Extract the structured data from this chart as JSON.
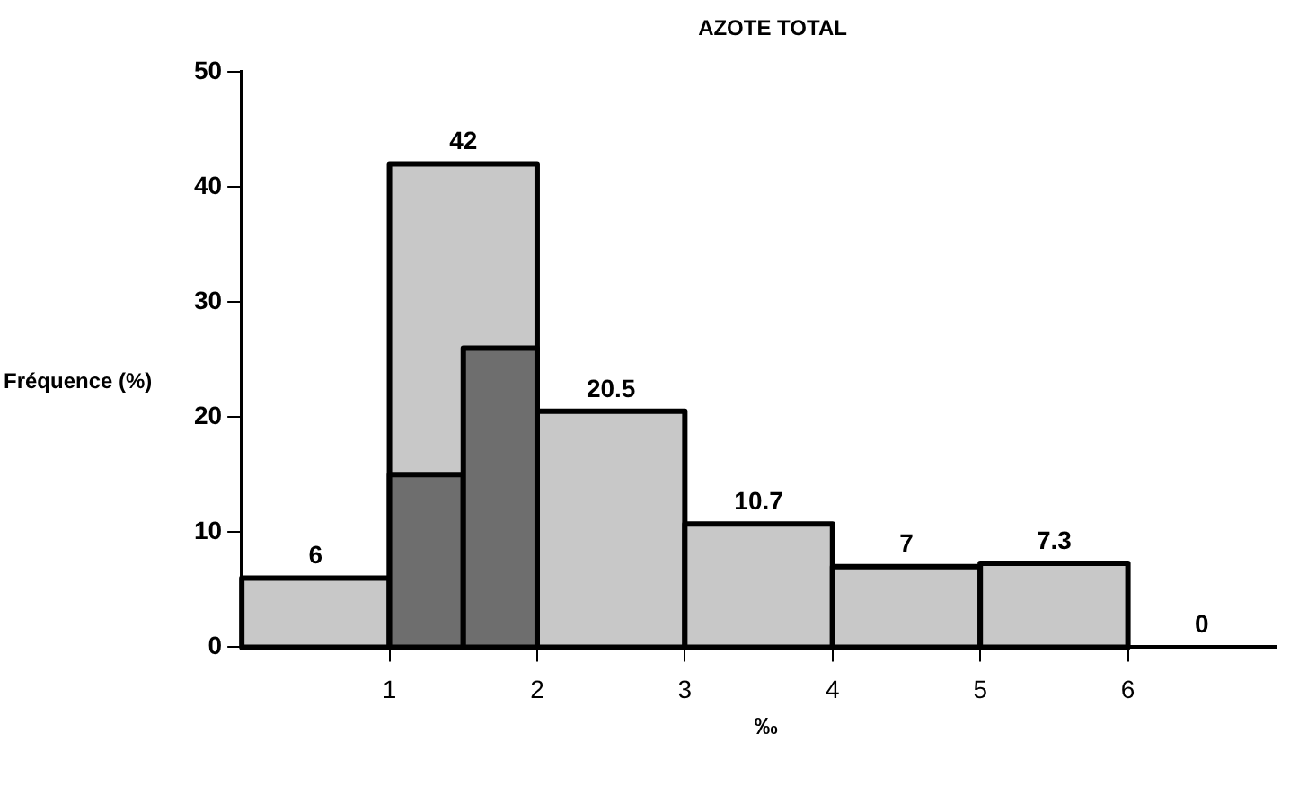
{
  "chart_data": {
    "type": "histogram",
    "title": "AZOTE TOTAL",
    "xlabel": "‰",
    "ylabel": "Fréquence (%)",
    "bins": [
      0,
      1,
      2,
      3,
      4,
      5,
      6,
      7
    ],
    "series": [
      {
        "color": "#c8c8c8",
        "values": [
          6,
          42,
          20.5,
          10.7,
          7,
          7.3,
          0
        ],
        "value_labels": [
          "6",
          "42",
          "20.5",
          "10.7",
          "7",
          "7.3",
          "0"
        ]
      },
      {
        "color": "#6e6e6e",
        "bins": [
          1,
          1.5,
          2
        ],
        "values": [
          15,
          26
        ]
      }
    ],
    "xlim": [
      0,
      7
    ],
    "xticks": [
      1,
      2,
      3,
      4,
      5,
      6
    ],
    "ylim": [
      0,
      50
    ],
    "yticks": [
      0,
      10,
      20,
      30,
      40,
      50
    ],
    "grid": false,
    "legend": false
  }
}
